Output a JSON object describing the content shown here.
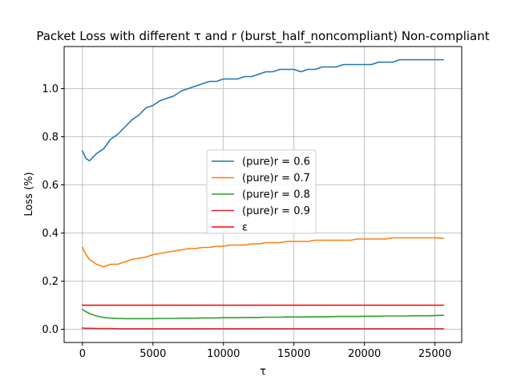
{
  "chart_data": {
    "type": "line",
    "title": "Packet Loss with different τ and r (burst_half_noncompliant) Non-compliant",
    "xlabel": "τ",
    "ylabel": "Loss (%)",
    "xlim": [
      -1300,
      26900
    ],
    "ylim": [
      -0.055,
      1.175
    ],
    "xticks": [
      0,
      5000,
      10000,
      15000,
      20000,
      25000
    ],
    "xtick_labels": [
      "0",
      "5000",
      "10000",
      "15000",
      "20000",
      "25000"
    ],
    "yticks": [
      0.0,
      0.2,
      0.4,
      0.6,
      0.8,
      1.0
    ],
    "ytick_labels": [
      "0.0",
      "0.2",
      "0.4",
      "0.6",
      "0.8",
      "1.0"
    ],
    "grid": true,
    "legend_position": "center",
    "x": [
      0,
      250,
      500,
      1000,
      1500,
      2000,
      2500,
      3000,
      3500,
      4000,
      4500,
      5000,
      5500,
      6000,
      6500,
      7000,
      7500,
      8000,
      8500,
      9000,
      9500,
      10000,
      10500,
      11000,
      11500,
      12000,
      12500,
      13000,
      13500,
      14000,
      14500,
      15000,
      15500,
      16000,
      16500,
      17000,
      17500,
      18000,
      18500,
      19000,
      19500,
      20000,
      20500,
      21000,
      21500,
      22000,
      22500,
      23000,
      23500,
      24000,
      24500,
      25000,
      25600
    ],
    "series": [
      {
        "name": "(pure)r = 0.6",
        "color": "#1f77b4",
        "values": [
          0.74,
          0.71,
          0.7,
          0.73,
          0.75,
          0.79,
          0.81,
          0.84,
          0.87,
          0.89,
          0.92,
          0.93,
          0.95,
          0.96,
          0.97,
          0.99,
          1.0,
          1.01,
          1.02,
          1.03,
          1.03,
          1.04,
          1.04,
          1.04,
          1.05,
          1.05,
          1.06,
          1.07,
          1.07,
          1.08,
          1.08,
          1.08,
          1.07,
          1.08,
          1.08,
          1.09,
          1.09,
          1.09,
          1.1,
          1.1,
          1.1,
          1.1,
          1.1,
          1.11,
          1.11,
          1.11,
          1.12,
          1.12,
          1.12,
          1.12,
          1.12,
          1.12,
          1.12
        ]
      },
      {
        "name": "(pure)r = 0.7",
        "color": "#ff7f0e",
        "values": [
          0.34,
          0.31,
          0.29,
          0.27,
          0.26,
          0.27,
          0.27,
          0.28,
          0.29,
          0.295,
          0.3,
          0.31,
          0.315,
          0.32,
          0.325,
          0.33,
          0.335,
          0.335,
          0.34,
          0.34,
          0.345,
          0.345,
          0.35,
          0.35,
          0.35,
          0.355,
          0.355,
          0.36,
          0.36,
          0.36,
          0.365,
          0.365,
          0.365,
          0.365,
          0.37,
          0.37,
          0.37,
          0.37,
          0.37,
          0.37,
          0.375,
          0.375,
          0.375,
          0.375,
          0.375,
          0.38,
          0.38,
          0.38,
          0.38,
          0.38,
          0.38,
          0.38,
          0.378
        ]
      },
      {
        "name": "(pure)r = 0.8",
        "color": "#2ca02c",
        "values": [
          0.082,
          0.073,
          0.065,
          0.055,
          0.049,
          0.046,
          0.045,
          0.044,
          0.044,
          0.044,
          0.044,
          0.044,
          0.045,
          0.045,
          0.045,
          0.046,
          0.046,
          0.046,
          0.047,
          0.047,
          0.047,
          0.048,
          0.048,
          0.048,
          0.049,
          0.049,
          0.049,
          0.05,
          0.05,
          0.05,
          0.051,
          0.051,
          0.051,
          0.051,
          0.052,
          0.052,
          0.052,
          0.053,
          0.053,
          0.053,
          0.053,
          0.054,
          0.054,
          0.054,
          0.055,
          0.055,
          0.055,
          0.055,
          0.056,
          0.056,
          0.056,
          0.057,
          0.058
        ]
      },
      {
        "name": "(pure)r = 0.9",
        "color": "#d62728",
        "values": [
          0.005,
          0.004,
          0.004,
          0.003,
          0.003,
          0.003,
          0.002,
          0.002,
          0.002,
          0.002,
          0.002,
          0.002,
          0.002,
          0.002,
          0.002,
          0.002,
          0.002,
          0.002,
          0.002,
          0.002,
          0.002,
          0.002,
          0.002,
          0.002,
          0.002,
          0.002,
          0.002,
          0.002,
          0.002,
          0.002,
          0.002,
          0.002,
          0.002,
          0.002,
          0.002,
          0.002,
          0.002,
          0.002,
          0.002,
          0.002,
          0.002,
          0.002,
          0.002,
          0.002,
          0.002,
          0.002,
          0.002,
          0.002,
          0.002,
          0.002,
          0.002,
          0.002,
          0.002
        ]
      },
      {
        "name": "ε",
        "color": "#ff0000",
        "constant": 0.1
      }
    ]
  }
}
